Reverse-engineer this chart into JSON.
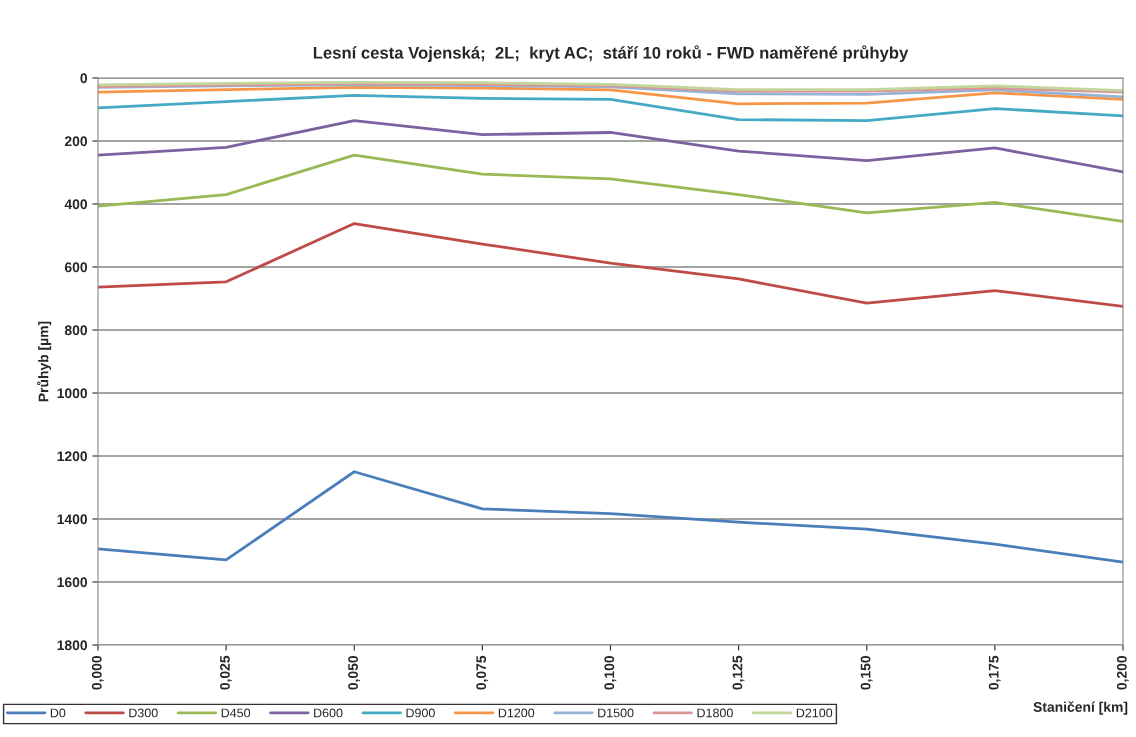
{
  "chart_data": {
    "type": "line",
    "title": "Lesní cesta Vojenská;  2L;  kryt AC;  stáří 10 roků - FWD naměřené průhyby",
    "xlabel": "Staničení [km]",
    "ylabel": "Průhyb [µm]",
    "x": [
      0,
      0.025,
      0.05,
      0.075,
      0.1,
      0.125,
      0.15,
      0.175,
      0.2
    ],
    "xlim": [
      0,
      0.2
    ],
    "xticks": [
      {
        "value": 0,
        "label": "0,000"
      },
      {
        "value": 0.025,
        "label": "0,025"
      },
      {
        "value": 0.05,
        "label": "0,050"
      },
      {
        "value": 0.075,
        "label": "0,075"
      },
      {
        "value": 0.1,
        "label": "0,100"
      },
      {
        "value": 0.125,
        "label": "0,125"
      },
      {
        "value": 0.15,
        "label": "0,150"
      },
      {
        "value": 0.175,
        "label": "0,175"
      },
      {
        "value": 0.2,
        "label": "0,200"
      }
    ],
    "ylim": [
      1800,
      0
    ],
    "yticks": [
      0,
      200,
      400,
      600,
      800,
      1000,
      1200,
      1400,
      1600,
      1800
    ],
    "grid": "y",
    "legend": "bottom",
    "marker": "none",
    "line_style": "solid",
    "series": [
      {
        "name": "D0",
        "color": "#4a7ebb",
        "values": [
          1495,
          1530,
          1250,
          1368,
          1383,
          1410,
          1432,
          1480,
          1537
        ]
      },
      {
        "name": "D300",
        "color": "#be4b48",
        "values": [
          664,
          647,
          462,
          527,
          588,
          638,
          715,
          675,
          725
        ]
      },
      {
        "name": "D450",
        "color": "#98b954",
        "values": [
          407,
          370,
          245,
          305,
          320,
          370,
          428,
          395,
          455
        ]
      },
      {
        "name": "D600",
        "color": "#7d60a0",
        "values": [
          245,
          220,
          135,
          180,
          173,
          232,
          262,
          222,
          298
        ]
      },
      {
        "name": "D900",
        "color": "#46aac5",
        "values": [
          95,
          75,
          55,
          65,
          68,
          132,
          135,
          97,
          120
        ]
      },
      {
        "name": "D1200",
        "color": "#f79646",
        "values": [
          45,
          37,
          30,
          32,
          38,
          82,
          80,
          47,
          68
        ]
      },
      {
        "name": "D1500",
        "color": "#95b3d7",
        "values": [
          30,
          25,
          22,
          24,
          28,
          50,
          52,
          38,
          60
        ]
      },
      {
        "name": "D1800",
        "color": "#d99694",
        "values": [
          27,
          22,
          18,
          20,
          24,
          42,
          42,
          32,
          45
        ]
      },
      {
        "name": "D2100",
        "color": "#c3d69b",
        "values": [
          22,
          17,
          14,
          15,
          20,
          37,
          37,
          25,
          40
        ]
      }
    ]
  }
}
